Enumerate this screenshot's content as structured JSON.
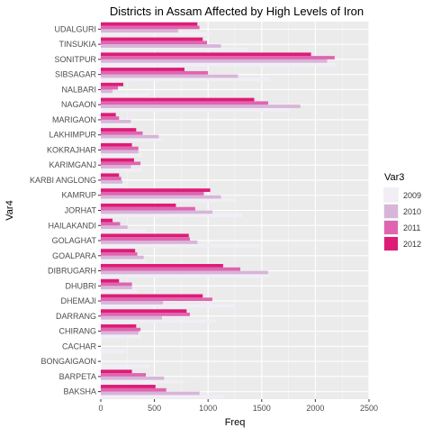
{
  "chart_data": {
    "type": "bar",
    "orientation": "horizontal",
    "title": "Districts in Assam Affected by High Levels of Iron",
    "xlabel": "Freq",
    "ylabel": "Var4",
    "xlim": [
      0,
      2500
    ],
    "xticks": [
      0,
      500,
      1000,
      1500,
      2000,
      2500
    ],
    "grid": true,
    "legend_title": "Var3",
    "legend_position": "right",
    "categories": [
      "UDALGURI",
      "TINSUKIA",
      "SONITPUR",
      "SIBSAGAR",
      "NALBARI",
      "NAGAON",
      "MARIGAON",
      "LAKHIMPUR",
      "KOKRAJHAR",
      "KARIMGANJ",
      "KARBI ANGLONG",
      "KAMRUP",
      "JORHAT",
      "HAILAKANDI",
      "GOLAGHAT",
      "GOALPARA",
      "DIBRUGARH",
      "DHUBRI",
      "DHEMAJI",
      "DARRANG",
      "CHIRANG",
      "CACHAR",
      "BONGAIGAON",
      "BARPETA",
      "BAKSHA"
    ],
    "series": [
      {
        "name": "2009",
        "color": "#f1eef6",
        "values": [
          1020,
          1380,
          2200,
          1580,
          450,
          1760,
          300,
          590,
          380,
          380,
          230,
          1260,
          1320,
          420,
          1480,
          420,
          1570,
          340,
          1240,
          1080,
          380,
          230,
          460,
          780,
          1150
        ]
      },
      {
        "name": "2010",
        "color": "#d7b5d8",
        "values": [
          720,
          1120,
          2110,
          1280,
          110,
          1860,
          280,
          540,
          350,
          280,
          200,
          1120,
          1040,
          250,
          900,
          400,
          1560,
          290,
          580,
          570,
          350,
          0,
          0,
          590,
          920
        ]
      },
      {
        "name": "2011",
        "color": "#df65b0",
        "values": [
          920,
          990,
          2180,
          1000,
          160,
          1560,
          170,
          390,
          350,
          370,
          190,
          960,
          880,
          180,
          830,
          340,
          1300,
          290,
          1040,
          830,
          370,
          0,
          0,
          420,
          610
        ]
      },
      {
        "name": "2012",
        "color": "#dd1c77",
        "values": [
          900,
          950,
          1960,
          780,
          210,
          1430,
          140,
          330,
          290,
          310,
          170,
          1020,
          700,
          110,
          820,
          320,
          1140,
          170,
          950,
          800,
          330,
          0,
          0,
          290,
          510
        ]
      }
    ]
  }
}
